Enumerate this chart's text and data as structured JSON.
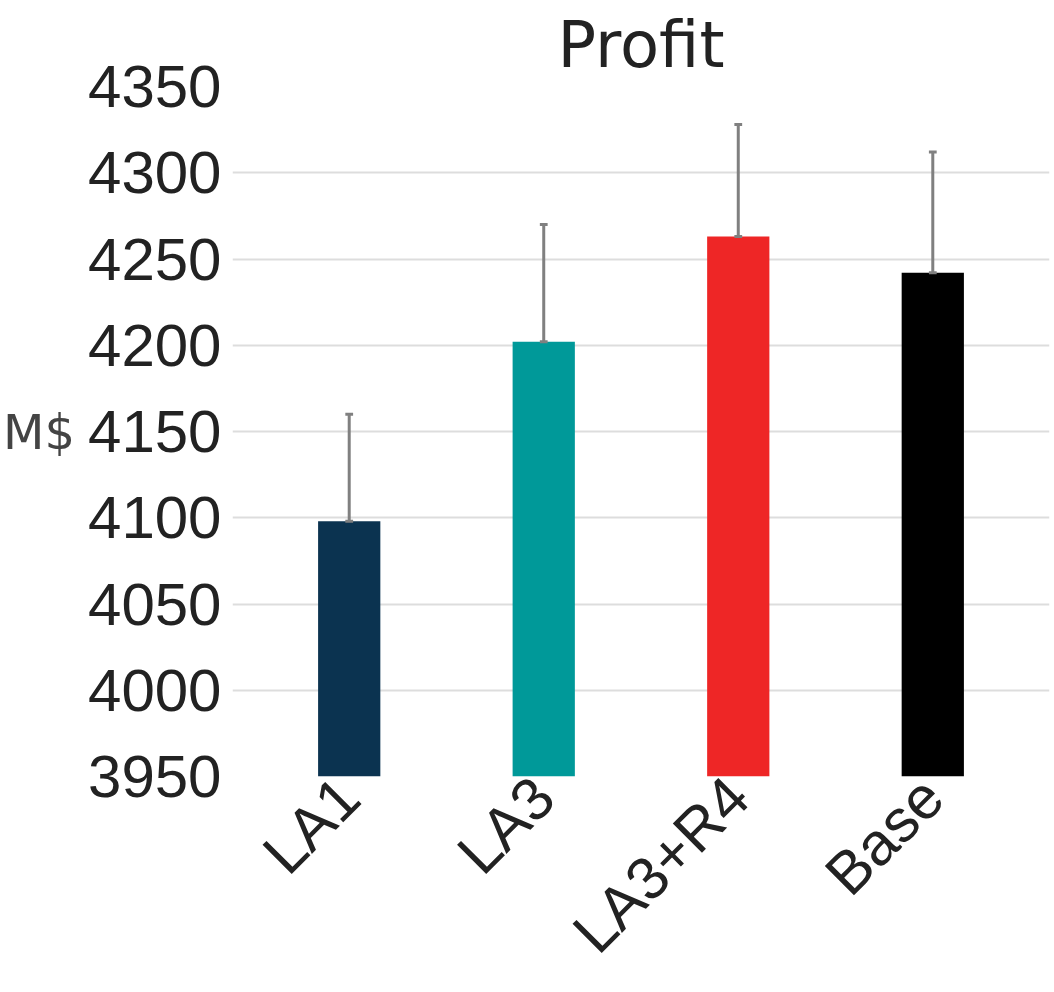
{
  "chart_data": {
    "type": "bar",
    "title": "Profit",
    "ylabel": "M$",
    "categories": [
      "LA1",
      "LA3",
      "LA3+R4",
      "Base"
    ],
    "values": [
      4098,
      4202,
      4263,
      4242
    ],
    "colors": [
      "#0b3350",
      "#009999",
      "#ee2626",
      "#000000"
    ],
    "errors": [
      [
        4098,
        4160
      ],
      [
        4202,
        4270
      ],
      [
        4263,
        4328
      ],
      [
        4242,
        4312
      ]
    ],
    "ylim": [
      3950,
      4350
    ],
    "yticks": [
      3950,
      4000,
      4050,
      4100,
      4150,
      4200,
      4250,
      4300,
      4350
    ],
    "grid": "y"
  }
}
